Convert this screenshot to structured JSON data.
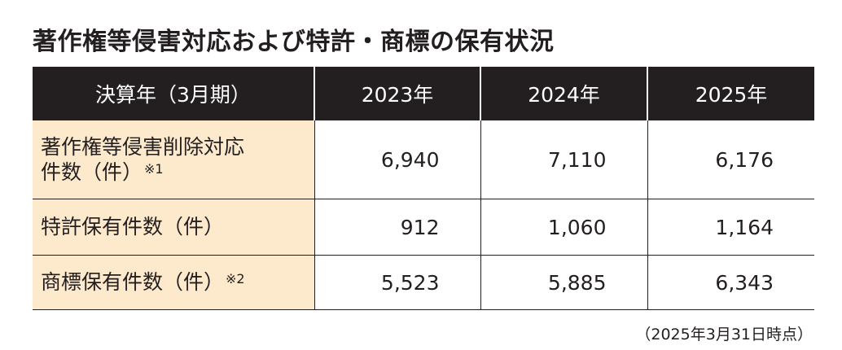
{
  "title": "著作権等侵害対応および特許・商標の保有状況",
  "table": {
    "headers": [
      "決算年（3月期）",
      "2023年",
      "2024年",
      "2025年"
    ],
    "rows": [
      {
        "label_line1": "著作権等侵害削除対応",
        "label_line2": "件数（件）",
        "note": "※1",
        "values": [
          "6,940",
          "7,110",
          "6,176"
        ]
      },
      {
        "label_line1": "特許保有件数（件）",
        "label_line2": "",
        "note": "",
        "values": [
          "912",
          "1,060",
          "1,164"
        ]
      },
      {
        "label_line1": "商標保有件数（件）",
        "label_line2": "",
        "note": "※2",
        "values": [
          "5,523",
          "5,885",
          "6,343"
        ]
      }
    ]
  },
  "footnote": "（2025年3月31日時点）",
  "colors": {
    "header_bg": "#231f20",
    "label_bg": "#fde9cc",
    "text": "#231f20"
  }
}
